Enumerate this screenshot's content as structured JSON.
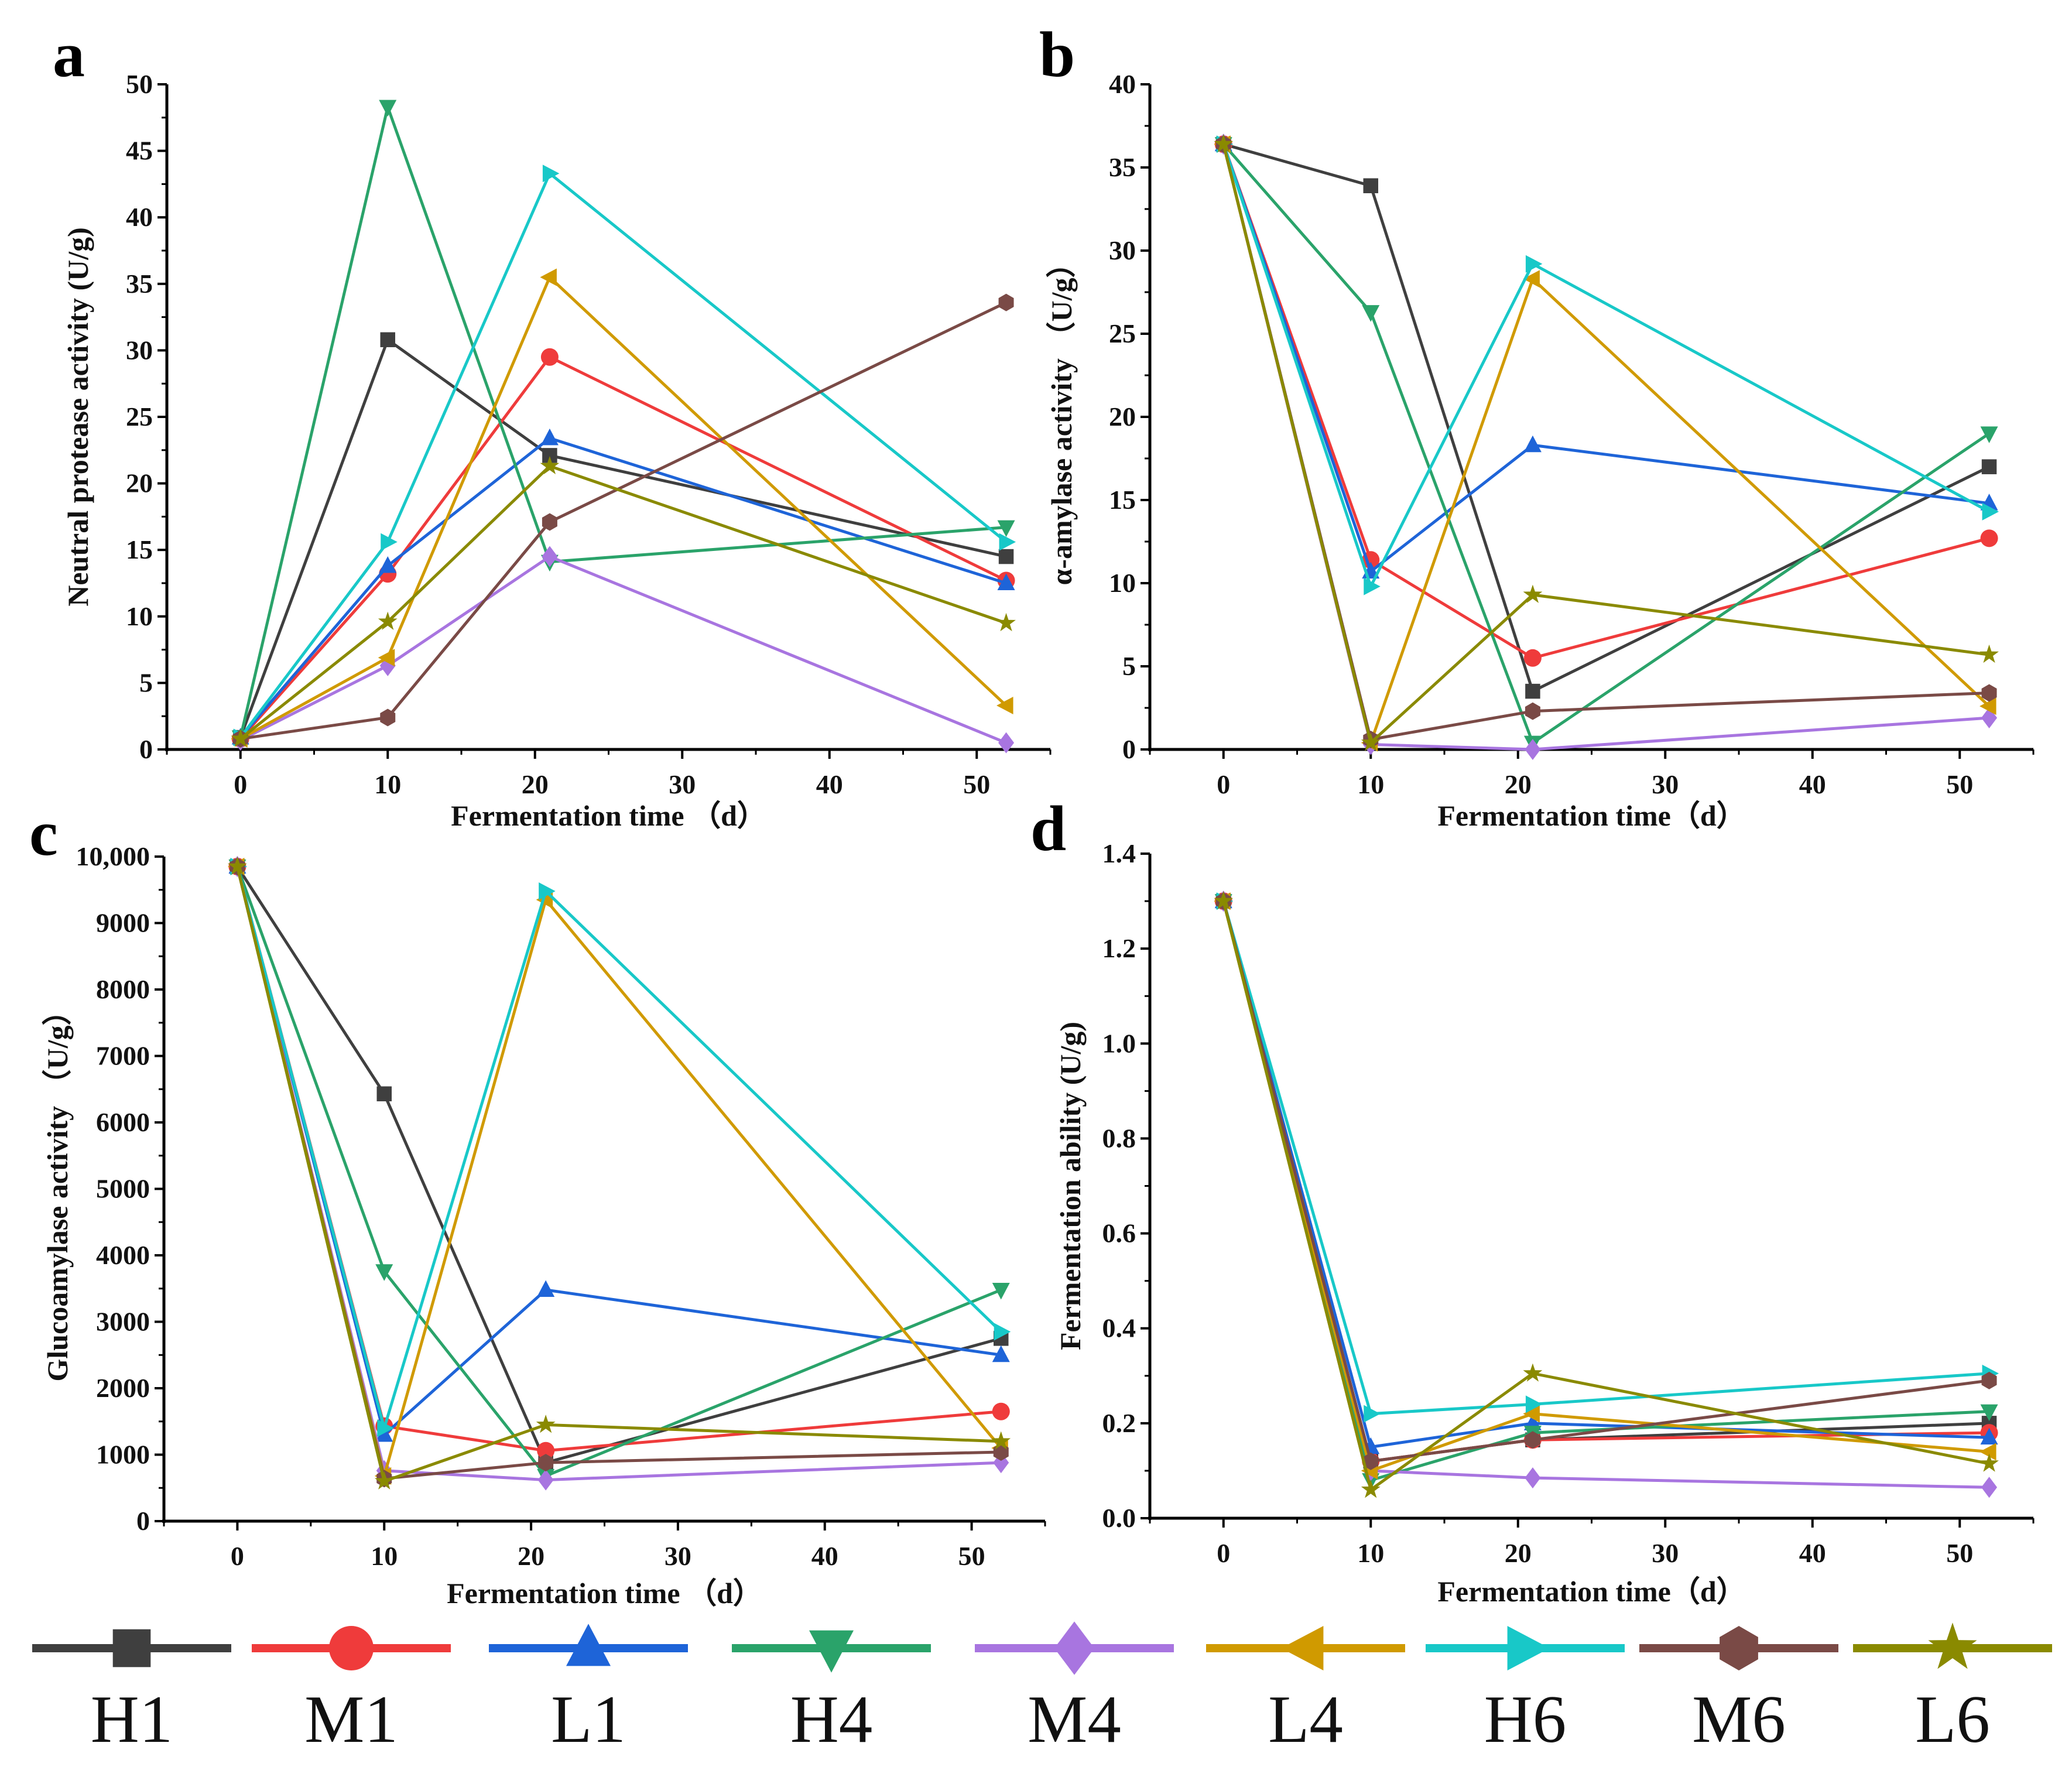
{
  "series_meta": [
    {
      "name": "H1",
      "color": "#3f3f3f",
      "marker": "square"
    },
    {
      "name": "M1",
      "color": "#ef3b3b",
      "marker": "circle"
    },
    {
      "name": "L1",
      "color": "#1e64d8",
      "marker": "triangle-up"
    },
    {
      "name": "H4",
      "color": "#2aa36a",
      "marker": "triangle-down"
    },
    {
      "name": "M4",
      "color": "#a875e0",
      "marker": "diamond"
    },
    {
      "name": "L4",
      "color": "#d09a00",
      "marker": "triangle-left"
    },
    {
      "name": "H6",
      "color": "#18c8c8",
      "marker": "triangle-right"
    },
    {
      "name": "M6",
      "color": "#7a4a46",
      "marker": "hexagon"
    },
    {
      "name": "L6",
      "color": "#8a8a00",
      "marker": "star"
    }
  ],
  "chart_data": [
    {
      "panel": "a",
      "type": "line",
      "xlabel": "Fermentation time （d）",
      "ylabel": "Neutral protease activity (U/g)",
      "x": [
        0,
        10,
        21,
        52
      ],
      "xlim": [
        -5,
        55
      ],
      "ylim": [
        0,
        50
      ],
      "xticks": [
        "0",
        "10",
        "20",
        "30",
        "40",
        "50"
      ],
      "yticks": [
        "0",
        "5",
        "10",
        "15",
        "20",
        "25",
        "30",
        "35",
        "40",
        "45",
        "50"
      ],
      "series": [
        {
          "name": "H1",
          "values": [
            0.9,
            30.8,
            22.1,
            14.5
          ]
        },
        {
          "name": "M1",
          "values": [
            0.8,
            13.2,
            29.5,
            12.7
          ]
        },
        {
          "name": "L1",
          "values": [
            0.9,
            13.8,
            23.4,
            12.5
          ]
        },
        {
          "name": "H4",
          "values": [
            0.9,
            48.3,
            14.1,
            16.7
          ]
        },
        {
          "name": "M4",
          "values": [
            0.7,
            6.3,
            14.5,
            0.5
          ]
        },
        {
          "name": "L4",
          "values": [
            0.8,
            6.9,
            35.5,
            3.3
          ]
        },
        {
          "name": "H6",
          "values": [
            0.9,
            15.6,
            43.3,
            15.6
          ]
        },
        {
          "name": "M6",
          "values": [
            0.8,
            2.4,
            17.1,
            33.6
          ]
        },
        {
          "name": "L6",
          "values": [
            0.8,
            9.6,
            21.3,
            9.5
          ]
        }
      ]
    },
    {
      "panel": "b",
      "type": "line",
      "xlabel": "Fermentation time（d）",
      "ylabel": "α-amylase activity （U/g）",
      "x": [
        0,
        10,
        21,
        52
      ],
      "xlim": [
        -5,
        55
      ],
      "ylim": [
        0,
        40
      ],
      "xticks": [
        "0",
        "10",
        "20",
        "30",
        "40",
        "50"
      ],
      "yticks": [
        "0",
        "5",
        "10",
        "15",
        "20",
        "25",
        "30",
        "35",
        "40"
      ],
      "series": [
        {
          "name": "H1",
          "values": [
            36.4,
            33.9,
            3.5,
            17.0
          ]
        },
        {
          "name": "M1",
          "values": [
            36.4,
            11.4,
            5.5,
            12.7
          ]
        },
        {
          "name": "L1",
          "values": [
            36.4,
            10.7,
            18.3,
            14.8
          ]
        },
        {
          "name": "H4",
          "values": [
            36.4,
            26.3,
            0.4,
            19.0
          ]
        },
        {
          "name": "M4",
          "values": [
            36.4,
            0.3,
            0.0,
            1.9
          ]
        },
        {
          "name": "L4",
          "values": [
            36.4,
            0.4,
            28.3,
            2.6
          ]
        },
        {
          "name": "H6",
          "values": [
            36.4,
            9.8,
            29.2,
            14.3
          ]
        },
        {
          "name": "M6",
          "values": [
            36.4,
            0.6,
            2.3,
            3.4
          ]
        },
        {
          "name": "L6",
          "values": [
            36.4,
            0.4,
            9.3,
            5.7
          ]
        }
      ]
    },
    {
      "panel": "c",
      "type": "line",
      "xlabel": "Fermentation time （d）",
      "ylabel": "Glucoamylase activity （U/g）",
      "x": [
        0,
        10,
        21,
        52
      ],
      "xlim": [
        -5,
        55
      ],
      "ylim": [
        0,
        10000
      ],
      "xticks": [
        "0",
        "10",
        "20",
        "30",
        "40",
        "50"
      ],
      "yticks": [
        "0",
        "1000",
        "2000",
        "3000",
        "4000",
        "5000",
        "6000",
        "7000",
        "8000",
        "9000",
        "10,000"
      ],
      "series": [
        {
          "name": "H1",
          "values": [
            9850,
            6430,
            880,
            2750
          ]
        },
        {
          "name": "M1",
          "values": [
            9850,
            1430,
            1060,
            1650
          ]
        },
        {
          "name": "L1",
          "values": [
            9850,
            1300,
            3480,
            2500
          ]
        },
        {
          "name": "H4",
          "values": [
            9850,
            3760,
            680,
            3480
          ]
        },
        {
          "name": "M4",
          "values": [
            9850,
            760,
            620,
            880
          ]
        },
        {
          "name": "L4",
          "values": [
            9850,
            680,
            9350,
            1100
          ]
        },
        {
          "name": "H6",
          "values": [
            9850,
            1400,
            9480,
            2850
          ]
        },
        {
          "name": "M6",
          "values": [
            9850,
            640,
            880,
            1040
          ]
        },
        {
          "name": "L6",
          "values": [
            9850,
            600,
            1450,
            1200
          ]
        }
      ]
    },
    {
      "panel": "d",
      "type": "line",
      "xlabel": "Fermentation time（d）",
      "ylabel": "Fermentation ability (U/g)",
      "x": [
        0,
        10,
        21,
        52
      ],
      "xlim": [
        -5,
        55
      ],
      "ylim": [
        0,
        1.4
      ],
      "xticks": [
        "0",
        "10",
        "20",
        "30",
        "40",
        "50"
      ],
      "yticks": [
        "0.0",
        "0.2",
        "0.4",
        "0.6",
        "0.8",
        "1.0",
        "1.2",
        "1.4"
      ],
      "series": [
        {
          "name": "H1",
          "values": [
            1.3,
            0.12,
            0.165,
            0.2
          ]
        },
        {
          "name": "M1",
          "values": [
            1.3,
            0.12,
            0.165,
            0.18
          ]
        },
        {
          "name": "L1",
          "values": [
            1.3,
            0.15,
            0.2,
            0.17
          ]
        },
        {
          "name": "H4",
          "values": [
            1.3,
            0.08,
            0.18,
            0.225
          ]
        },
        {
          "name": "M4",
          "values": [
            1.3,
            0.1,
            0.085,
            0.065
          ]
        },
        {
          "name": "L4",
          "values": [
            1.3,
            0.1,
            0.22,
            0.14
          ]
        },
        {
          "name": "H6",
          "values": [
            1.3,
            0.22,
            0.24,
            0.305
          ]
        },
        {
          "name": "M6",
          "values": [
            1.3,
            0.12,
            0.165,
            0.29
          ]
        },
        {
          "name": "L6",
          "values": [
            1.3,
            0.06,
            0.305,
            0.115
          ]
        }
      ]
    }
  ]
}
